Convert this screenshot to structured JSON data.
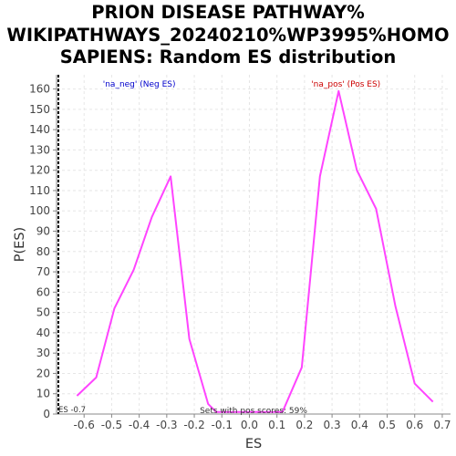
{
  "chart_data": {
    "type": "line",
    "title": [
      "PRION DISEASE PATHWAY%",
      "WIKIPATHWAYS_20240210%WP3995%HOMO",
      "SAPIENS: Random ES distribution"
    ],
    "xlabel": "ES",
    "ylabel": "P(ES)",
    "xlim": [
      -0.7,
      0.73
    ],
    "ylim": [
      0,
      167
    ],
    "xticks": [
      "-0.6",
      "-0.5",
      "-0.4",
      "-0.3",
      "-0.2",
      "-0.1",
      "0.0",
      "0.1",
      "0.2",
      "0.3",
      "0.4",
      "0.5",
      "0.6",
      "0.7"
    ],
    "yticks": [
      "0",
      "10",
      "20",
      "30",
      "40",
      "50",
      "60",
      "70",
      "80",
      "90",
      "100",
      "110",
      "120",
      "130",
      "140",
      "150",
      "160"
    ],
    "grid": true,
    "series": [
      {
        "color": "#ff44ff",
        "x": [
          -0.626,
          -0.556,
          -0.49,
          -0.42,
          -0.354,
          -0.286,
          -0.218,
          -0.15,
          -0.12,
          0.12,
          0.19,
          0.256,
          0.324,
          0.39,
          0.46,
          0.53,
          0.6,
          0.666
        ],
        "y": [
          9,
          18,
          52,
          71,
          97,
          117,
          37,
          5,
          1,
          1,
          23,
          117,
          159,
          120,
          101,
          53,
          15,
          6
        ]
      }
    ],
    "annotations": {
      "neg_label": "'na_neg' (Neg ES)",
      "neg_color": "#0000cc",
      "neg_x": -0.4,
      "pos_label": "'na_pos' (Pos ES)",
      "pos_color": "#cc0000",
      "pos_x": 0.35,
      "es_marker": {
        "x": -0.7,
        "label": "ES -0.7"
      },
      "bottom_text": "Sets with pos scores: 59%"
    }
  }
}
